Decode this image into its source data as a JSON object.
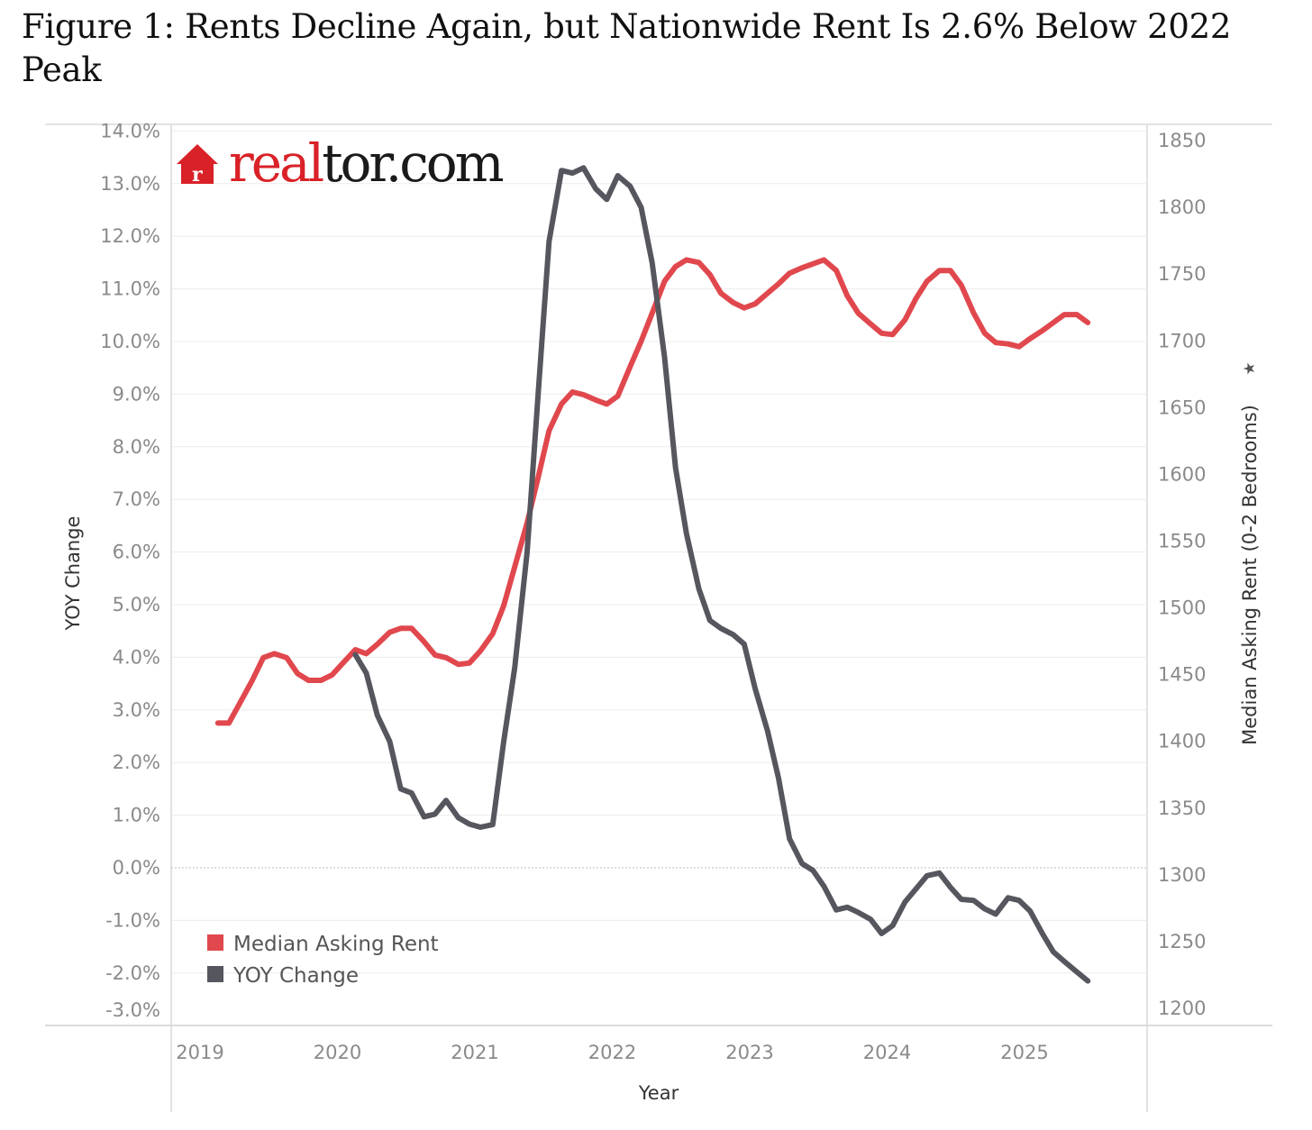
{
  "title": "Figure 1: Rents Decline Again, but Nationwide Rent Is 2.6% Below 2022 Peak",
  "logo": {
    "text_red": "real",
    "text_dark": "tor.com",
    "icon": "house-icon",
    "brand_color": "#d92228",
    "dark_color": "#1a1a1a"
  },
  "chart_data": {
    "type": "line",
    "xlabel": "Year",
    "ylabel_left": "YOY Change",
    "ylabel_right": "Median Asking Rent (0-2 Bedrooms)",
    "right_axis_marker": "★",
    "x_ticks": [
      "2019",
      "2020",
      "2021",
      "2022",
      "2023",
      "2024",
      "2025"
    ],
    "left_ticks": [
      "14.0%",
      "13.0%",
      "12.0%",
      "11.0%",
      "10.0%",
      "9.0%",
      "8.0%",
      "7.0%",
      "6.0%",
      "5.0%",
      "4.0%",
      "3.0%",
      "2.0%",
      "1.0%",
      "0.0%",
      "-1.0%",
      "-2.0%",
      "-3.0%"
    ],
    "left_tick_values": [
      14,
      13,
      12,
      11,
      10,
      9,
      8,
      7,
      6,
      5,
      4,
      3,
      2,
      1,
      0,
      -1,
      -2,
      -3
    ],
    "right_ticks": [
      "1850",
      "1800",
      "1750",
      "1700",
      "1650",
      "1600",
      "1550",
      "1500",
      "1450",
      "1400",
      "1350",
      "1300",
      "1250",
      "1200"
    ],
    "right_tick_values": [
      1850,
      1800,
      1750,
      1700,
      1650,
      1600,
      1550,
      1500,
      1450,
      1400,
      1350,
      1300,
      1250,
      1200
    ],
    "x_range": [
      2019.0,
      2025.8
    ],
    "ylim_left": [
      -3.0,
      14.0
    ],
    "ylim_right": [
      1200,
      1850
    ],
    "zero_reference_line": true,
    "legend_position": "bottom-left",
    "series": [
      {
        "name": "Median Asking Rent",
        "axis": "right",
        "color": "#e0484e",
        "points": [
          [
            2019.13,
            1413
          ],
          [
            2019.21,
            1413
          ],
          [
            2019.29,
            1428
          ],
          [
            2019.38,
            1445
          ],
          [
            2019.46,
            1462
          ],
          [
            2019.54,
            1465
          ],
          [
            2019.63,
            1462
          ],
          [
            2019.71,
            1450
          ],
          [
            2019.79,
            1445
          ],
          [
            2019.88,
            1445
          ],
          [
            2019.96,
            1449
          ],
          [
            2020.04,
            1458
          ],
          [
            2020.13,
            1468
          ],
          [
            2020.21,
            1465
          ],
          [
            2020.29,
            1472
          ],
          [
            2020.38,
            1481
          ],
          [
            2020.46,
            1484
          ],
          [
            2020.54,
            1484
          ],
          [
            2020.63,
            1474
          ],
          [
            2020.71,
            1464
          ],
          [
            2020.79,
            1462
          ],
          [
            2020.88,
            1457
          ],
          [
            2020.96,
            1458
          ],
          [
            2021.04,
            1467
          ],
          [
            2021.13,
            1480
          ],
          [
            2021.21,
            1501
          ],
          [
            2021.29,
            1530
          ],
          [
            2021.38,
            1563
          ],
          [
            2021.46,
            1597
          ],
          [
            2021.54,
            1632
          ],
          [
            2021.63,
            1652
          ],
          [
            2021.71,
            1661
          ],
          [
            2021.79,
            1659
          ],
          [
            2021.88,
            1655
          ],
          [
            2021.96,
            1652
          ],
          [
            2022.04,
            1658
          ],
          [
            2022.13,
            1680
          ],
          [
            2022.21,
            1699
          ],
          [
            2022.29,
            1720
          ],
          [
            2022.38,
            1744
          ],
          [
            2022.46,
            1755
          ],
          [
            2022.54,
            1760
          ],
          [
            2022.63,
            1758
          ],
          [
            2022.71,
            1749
          ],
          [
            2022.79,
            1735
          ],
          [
            2022.88,
            1728
          ],
          [
            2022.96,
            1724
          ],
          [
            2023.04,
            1727
          ],
          [
            2023.13,
            1735
          ],
          [
            2023.21,
            1742
          ],
          [
            2023.29,
            1750
          ],
          [
            2023.38,
            1754
          ],
          [
            2023.46,
            1757
          ],
          [
            2023.54,
            1760
          ],
          [
            2023.63,
            1752
          ],
          [
            2023.71,
            1733
          ],
          [
            2023.79,
            1720
          ],
          [
            2023.88,
            1712
          ],
          [
            2023.96,
            1705
          ],
          [
            2024.04,
            1704
          ],
          [
            2024.13,
            1715
          ],
          [
            2024.21,
            1731
          ],
          [
            2024.29,
            1744
          ],
          [
            2024.38,
            1752
          ],
          [
            2024.46,
            1752
          ],
          [
            2024.54,
            1741
          ],
          [
            2024.63,
            1720
          ],
          [
            2024.71,
            1705
          ],
          [
            2024.79,
            1698
          ],
          [
            2024.88,
            1697
          ],
          [
            2024.96,
            1695
          ],
          [
            2025.04,
            1701
          ],
          [
            2025.13,
            1707
          ],
          [
            2025.21,
            1713
          ],
          [
            2025.29,
            1719
          ],
          [
            2025.38,
            1719
          ],
          [
            2025.46,
            1713
          ]
        ]
      },
      {
        "name": "YOY Change",
        "axis": "left",
        "color": "#55565e",
        "points": [
          [
            2020.13,
            4.05
          ],
          [
            2020.21,
            3.7
          ],
          [
            2020.29,
            2.9
          ],
          [
            2020.38,
            2.4
          ],
          [
            2020.46,
            1.5
          ],
          [
            2020.54,
            1.42
          ],
          [
            2020.63,
            0.97
          ],
          [
            2020.71,
            1.02
          ],
          [
            2020.79,
            1.28
          ],
          [
            2020.88,
            0.95
          ],
          [
            2020.96,
            0.83
          ],
          [
            2021.04,
            0.77
          ],
          [
            2021.13,
            0.82
          ],
          [
            2021.21,
            2.4
          ],
          [
            2021.29,
            3.8
          ],
          [
            2021.38,
            6.0
          ],
          [
            2021.46,
            9.0
          ],
          [
            2021.54,
            11.9
          ],
          [
            2021.63,
            13.25
          ],
          [
            2021.71,
            13.2
          ],
          [
            2021.79,
            13.3
          ],
          [
            2021.88,
            12.9
          ],
          [
            2021.96,
            12.7
          ],
          [
            2022.04,
            13.15
          ],
          [
            2022.13,
            12.95
          ],
          [
            2022.21,
            12.55
          ],
          [
            2022.29,
            11.5
          ],
          [
            2022.38,
            9.7
          ],
          [
            2022.46,
            7.6
          ],
          [
            2022.54,
            6.35
          ],
          [
            2022.63,
            5.3
          ],
          [
            2022.71,
            4.7
          ],
          [
            2022.79,
            4.55
          ],
          [
            2022.88,
            4.43
          ],
          [
            2022.96,
            4.25
          ],
          [
            2023.04,
            3.4
          ],
          [
            2023.13,
            2.6
          ],
          [
            2023.21,
            1.7
          ],
          [
            2023.29,
            0.55
          ],
          [
            2023.38,
            0.08
          ],
          [
            2023.46,
            -0.05
          ],
          [
            2023.54,
            -0.35
          ],
          [
            2023.63,
            -0.8
          ],
          [
            2023.71,
            -0.75
          ],
          [
            2023.79,
            -0.85
          ],
          [
            2023.88,
            -0.98
          ],
          [
            2023.96,
            -1.25
          ],
          [
            2024.04,
            -1.1
          ],
          [
            2024.13,
            -0.65
          ],
          [
            2024.21,
            -0.4
          ],
          [
            2024.29,
            -0.15
          ],
          [
            2024.38,
            -0.1
          ],
          [
            2024.46,
            -0.37
          ],
          [
            2024.54,
            -0.6
          ],
          [
            2024.63,
            -0.62
          ],
          [
            2024.71,
            -0.78
          ],
          [
            2024.79,
            -0.88
          ],
          [
            2024.88,
            -0.57
          ],
          [
            2024.96,
            -0.62
          ],
          [
            2025.04,
            -0.82
          ],
          [
            2025.13,
            -1.25
          ],
          [
            2025.21,
            -1.6
          ],
          [
            2025.29,
            -1.78
          ],
          [
            2025.38,
            -1.98
          ],
          [
            2025.46,
            -2.15
          ]
        ]
      }
    ]
  }
}
